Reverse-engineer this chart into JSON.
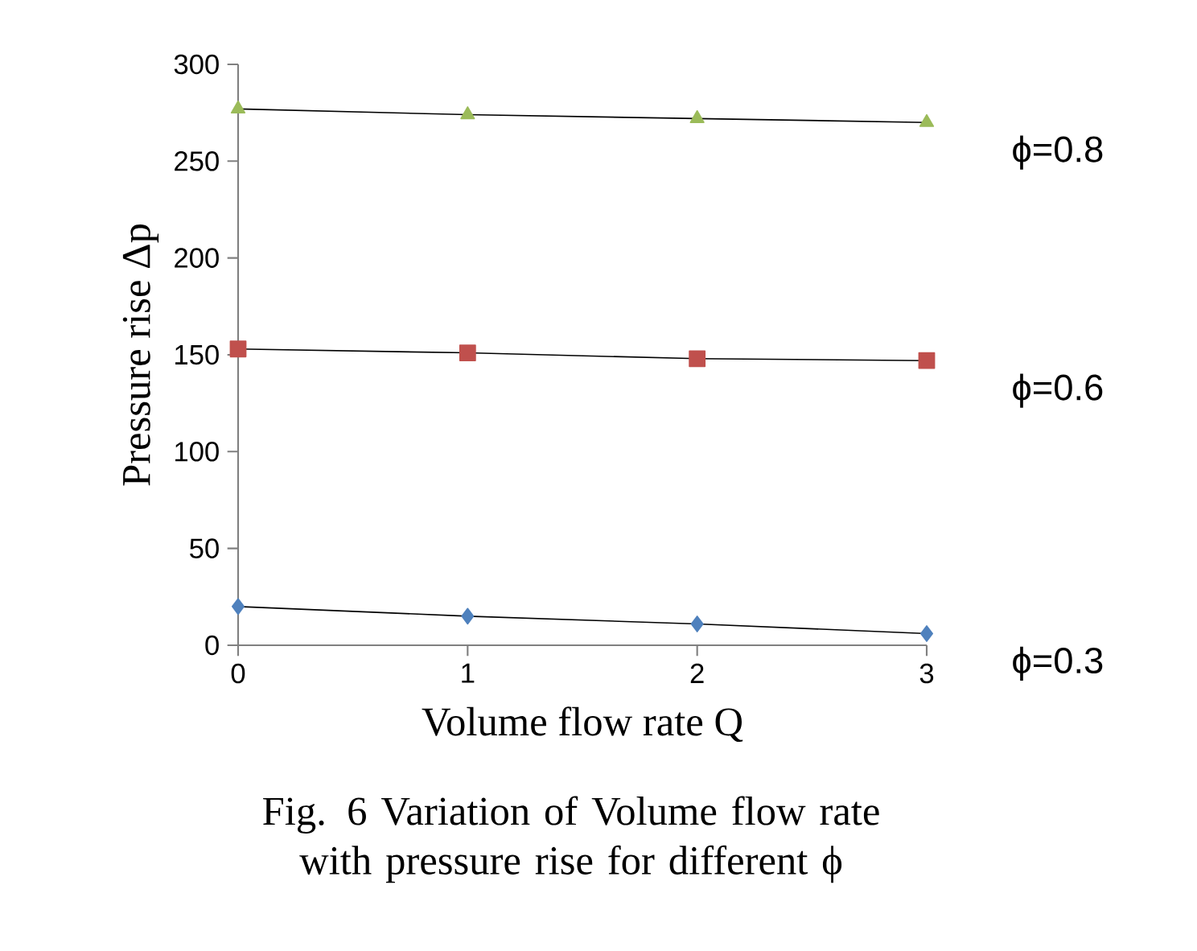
{
  "chart_data": {
    "type": "line",
    "xlabel": "Volume flow rate Q",
    "ylabel": "Pressure rise Δp",
    "x": [
      0,
      1,
      2,
      3
    ],
    "xlim": [
      0,
      3
    ],
    "xticks": [
      0,
      1,
      2,
      3
    ],
    "ylim": [
      0,
      300
    ],
    "yticks": [
      0,
      50,
      100,
      150,
      200,
      250,
      300
    ],
    "grid": false,
    "legend": false,
    "series": [
      {
        "name": "ϕ=0.3",
        "color": "#4f81bd",
        "marker": "diamond",
        "values": [
          20,
          15,
          11,
          6
        ]
      },
      {
        "name": "ϕ=0.6",
        "color": "#c0504d",
        "marker": "square",
        "values": [
          153,
          151,
          148,
          147
        ]
      },
      {
        "name": "ϕ=0.8",
        "color": "#9bbb59",
        "marker": "triangle",
        "values": [
          277,
          274,
          272,
          270
        ]
      }
    ],
    "annotations": [
      "Fig. 6 Variation of Volume flow rate with pressure rise for different ϕ"
    ]
  }
}
